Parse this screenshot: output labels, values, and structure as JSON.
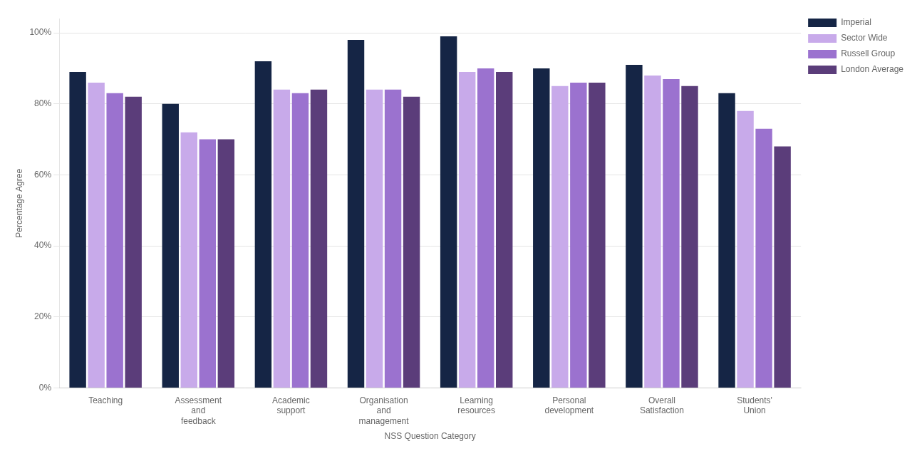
{
  "chart_data": {
    "type": "bar",
    "categories": [
      "Teaching",
      "Assessment\nand\nfeedback",
      "Academic\nsupport",
      "Organisation\nand\nmanagement",
      "Learning\nresources",
      "Personal\ndevelopment",
      "Overall\nSatisfaction",
      "Students'\nUnion"
    ],
    "series": [
      {
        "name": "Imperial",
        "color": "#152545",
        "values": [
          89,
          80,
          92,
          98,
          99,
          90,
          91,
          83
        ]
      },
      {
        "name": "Sector Wide",
        "color": "#c8aaea",
        "values": [
          86,
          72,
          84,
          84,
          89,
          85,
          88,
          78
        ]
      },
      {
        "name": "Russell Group",
        "color": "#9b72cf",
        "values": [
          83,
          70,
          83,
          84,
          90,
          86,
          87,
          73
        ]
      },
      {
        "name": "London Average",
        "color": "#5b3d7a",
        "values": [
          82,
          70,
          84,
          82,
          89,
          86,
          85,
          68
        ]
      }
    ],
    "x_label": "NSS Question Category",
    "y_label": "Percentage Agree",
    "ylim": [
      0,
      104
    ],
    "yticks": [
      {
        "value": 0,
        "label": "0%"
      },
      {
        "value": 20,
        "label": "20%"
      },
      {
        "value": 40,
        "label": "40%"
      },
      {
        "value": 60,
        "label": "60%"
      },
      {
        "value": 80,
        "label": "80%"
      },
      {
        "value": 100,
        "label": "100%"
      }
    ],
    "grid": true,
    "legend": "right"
  }
}
